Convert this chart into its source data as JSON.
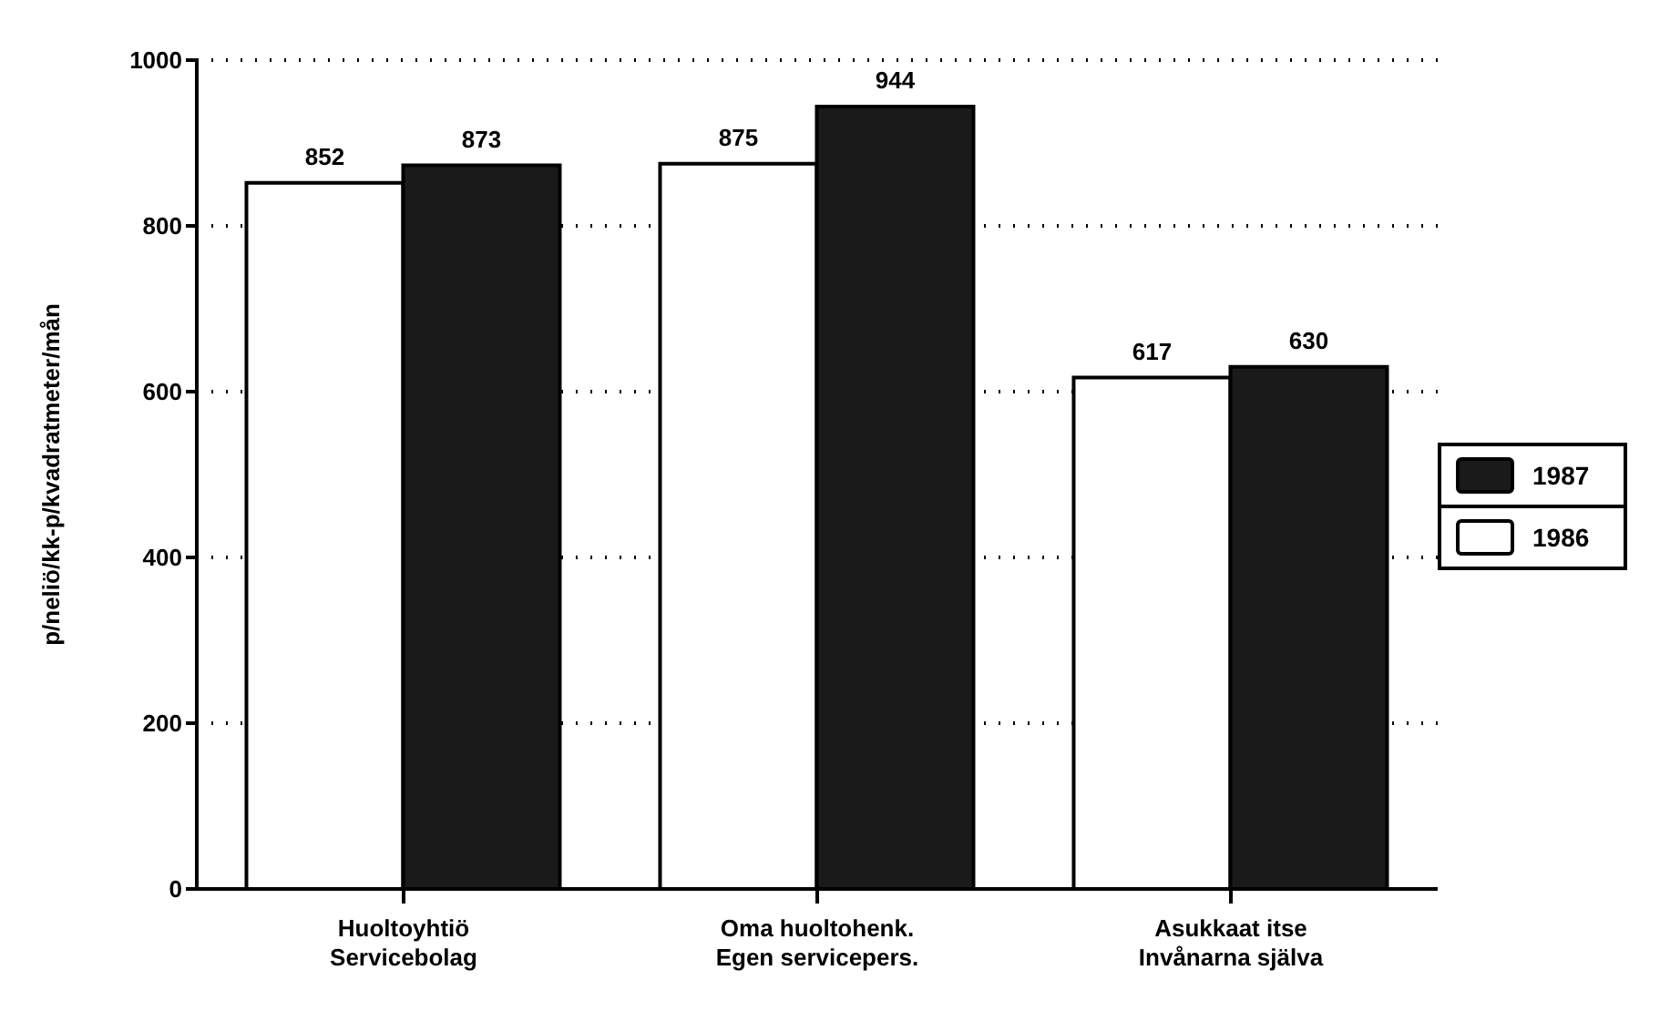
{
  "chart_data": {
    "type": "bar",
    "ylabel": "p/neliö/kk-p/kvadratmeter/mån",
    "categories": [
      "Huoltoyhtiö\nServicebolag",
      "Oma huoltohenk.\nEgen servicepers.",
      "Asukkaat itse\nInvånarna själva"
    ],
    "series": [
      {
        "name": "1986",
        "color": "#ffffff",
        "values": [
          852,
          875,
          617
        ]
      },
      {
        "name": "1987",
        "color": "#1a1a1a",
        "values": [
          873,
          944,
          630
        ]
      }
    ],
    "ylim": [
      0,
      1000
    ],
    "yticks": [
      0,
      200,
      400,
      600,
      800,
      1000
    ],
    "grid": "y",
    "legend": "right",
    "data_labels": true
  }
}
